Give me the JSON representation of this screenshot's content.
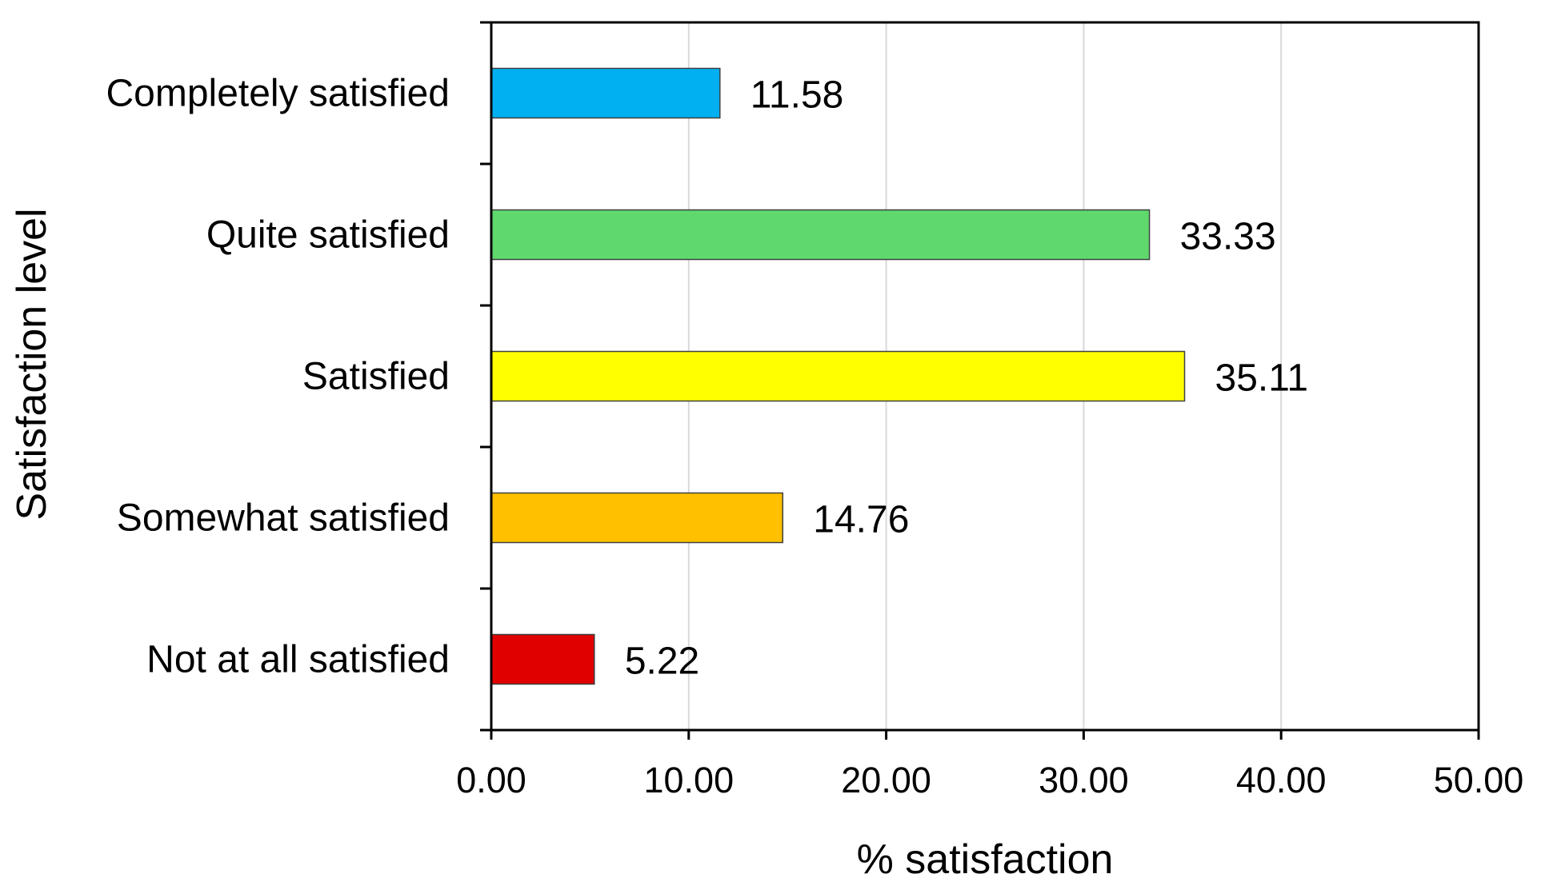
{
  "chart_data": {
    "type": "bar",
    "orientation": "horizontal",
    "categories": [
      "Completely satisfied",
      "Quite satisfied",
      "Satisfied",
      "Somewhat satisfied",
      "Not at all satisfied"
    ],
    "values": [
      11.58,
      33.33,
      35.11,
      14.76,
      5.22
    ],
    "data_labels": [
      "11.58",
      "33.33",
      "35.11",
      "14.76",
      "5.22"
    ],
    "colors": [
      "#00b0f0",
      "#5fd96e",
      "#ffff00",
      "#ffc000",
      "#e00000"
    ],
    "xlabel": "% satisfaction",
    "ylabel": "Satisfaction level",
    "xlim": [
      0,
      50
    ],
    "xticks": [
      0,
      10,
      20,
      30,
      40,
      50
    ],
    "xtick_labels": [
      "0.00",
      "10.00",
      "20.00",
      "30.00",
      "40.00",
      "50.00"
    ],
    "grid": "vertical",
    "legend": "none"
  }
}
